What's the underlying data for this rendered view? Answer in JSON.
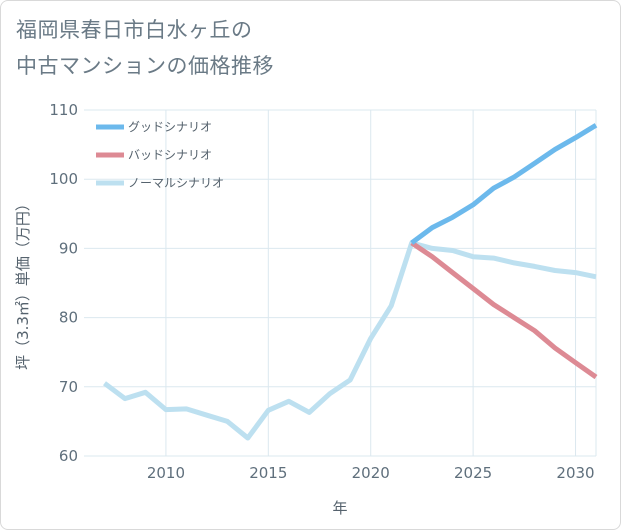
{
  "title_line1": "福岡県春日市白水ヶ丘の",
  "title_line2": "中古マンションの価格推移",
  "chart_data": {
    "type": "line",
    "xlabel": "年",
    "ylabel": "坪（3.3㎡）単価（万円）",
    "xlim": [
      2006,
      2031
    ],
    "ylim": [
      60,
      110
    ],
    "x_ticks": [
      2010,
      2015,
      2020,
      2025,
      2030
    ],
    "y_ticks": [
      60,
      70,
      80,
      90,
      100,
      110
    ],
    "grid": true,
    "legend_position": "top-left",
    "series": [
      {
        "name": "グッドシナリオ",
        "color": "#6cb9ec",
        "x": [
          2022,
          2023,
          2024,
          2025,
          2026,
          2027,
          2028,
          2029,
          2030,
          2031
        ],
        "y": [
          90.8,
          93.0,
          94.5,
          96.3,
          98.7,
          100.3,
          102.3,
          104.3,
          106.0,
          107.8
        ]
      },
      {
        "name": "バッドシナリオ",
        "color": "#dd8a94",
        "x": [
          2022,
          2023,
          2024,
          2025,
          2026,
          2027,
          2028,
          2029,
          2030,
          2031
        ],
        "y": [
          90.8,
          88.8,
          86.5,
          84.2,
          81.9,
          80.0,
          78.1,
          75.6,
          73.5,
          71.4
        ]
      },
      {
        "name": "ノーマルシナリオ",
        "color": "#bde0f0",
        "x": [
          2007,
          2008,
          2009,
          2010,
          2011,
          2012,
          2013,
          2014,
          2015,
          2016,
          2017,
          2018,
          2019,
          2020,
          2021,
          2022,
          2023,
          2024,
          2025,
          2026,
          2027,
          2028,
          2029,
          2030,
          2031
        ],
        "y": [
          70.5,
          68.3,
          69.2,
          66.7,
          66.8,
          65.9,
          65.0,
          62.6,
          66.6,
          67.9,
          66.3,
          69.0,
          71.0,
          77.0,
          81.7,
          90.8,
          90.0,
          89.7,
          88.8,
          88.6,
          87.9,
          87.4,
          86.8,
          86.5,
          85.9
        ]
      }
    ]
  }
}
